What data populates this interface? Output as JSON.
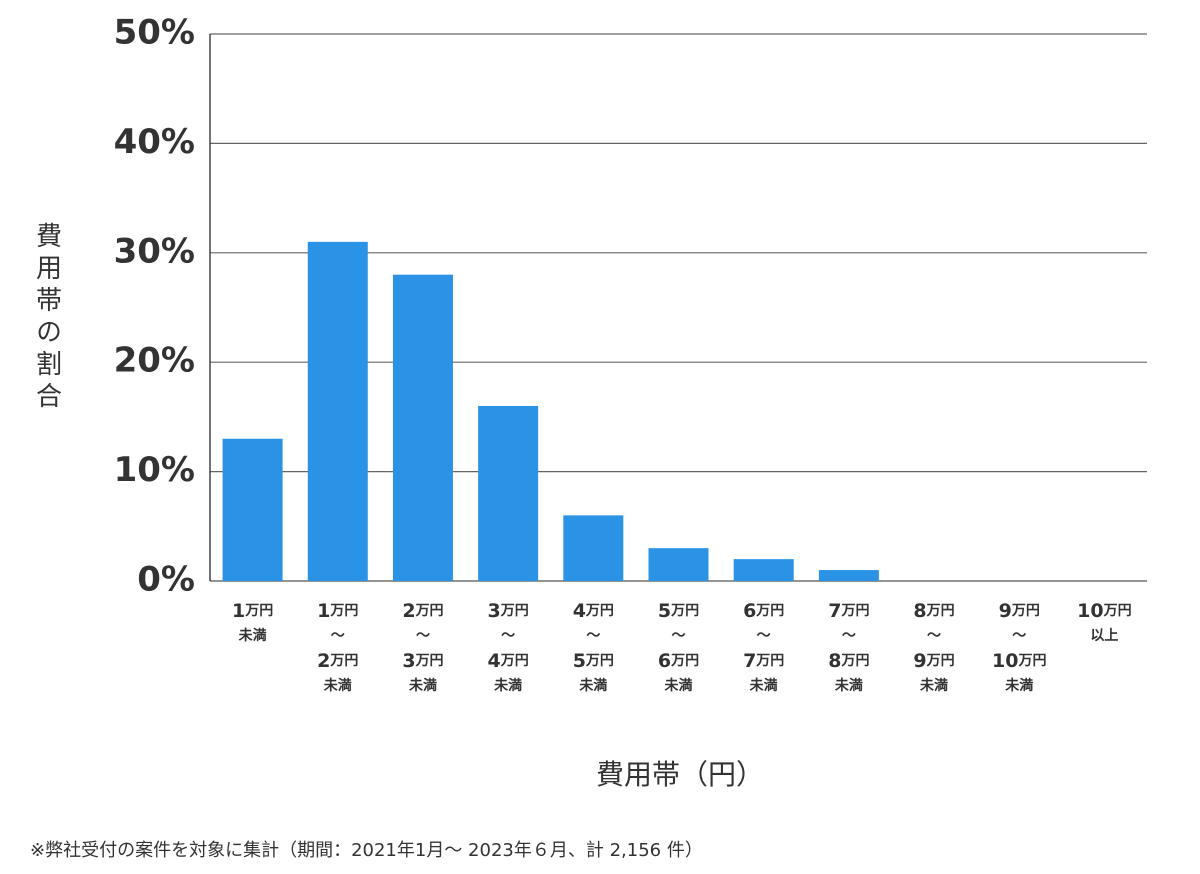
{
  "chart_data": {
    "type": "bar",
    "y_label": "費用帯の割合",
    "x_label": "費用帯（円）",
    "note": "※弊社受付の案件を対象に集計（期間：2021年1月～ 2023年６月、計 2,156 件）",
    "categories": [
      "1万円\n未満",
      "1万円\n〜\n2万円\n未満",
      "2万円\n〜\n3万円\n未満",
      "3万円\n〜\n4万円\n未満",
      "4万円\n〜\n5万円\n未満",
      "5万円\n〜\n6万円\n未満",
      "6万円\n〜\n7万円\n未満",
      "7万円\n〜\n8万円\n未満",
      "8万円\n〜\n9万円\n未満",
      "9万円\n〜\n10万円\n未満",
      "10万円\n以上"
    ],
    "values": [
      13,
      31,
      28,
      16,
      6,
      3,
      2,
      1,
      0,
      0,
      0
    ],
    "color": "#2a93e6",
    "ylim": [
      0,
      50
    ],
    "yticks": [
      {
        "value": 0,
        "label": "0%"
      },
      {
        "value": 10,
        "label": "10%"
      },
      {
        "value": 20,
        "label": "20%"
      },
      {
        "value": 30,
        "label": "30%"
      },
      {
        "value": 40,
        "label": "40%"
      },
      {
        "value": 50,
        "label": "50%"
      }
    ],
    "grid": true
  }
}
